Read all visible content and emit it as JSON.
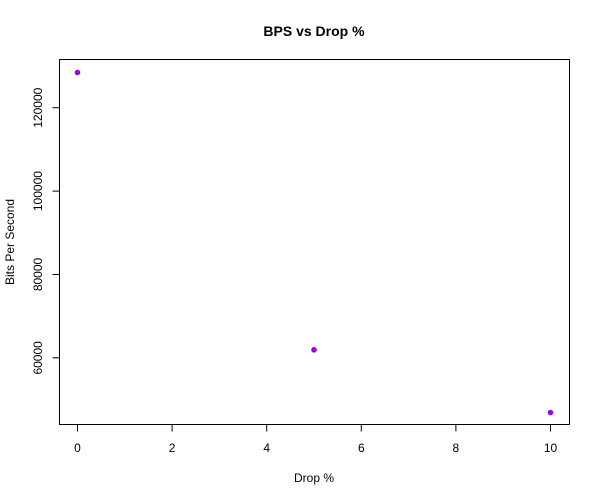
{
  "chart_data": {
    "type": "scatter",
    "title": "BPS vs Drop %",
    "xlabel": "Drop %",
    "ylabel": "Bits Per Second",
    "xlim": [
      0,
      10
    ],
    "ylim": [
      46890,
      128450
    ],
    "xticks": [
      0,
      2,
      4,
      6,
      8,
      10
    ],
    "yticks": [
      60000,
      80000,
      100000,
      120000
    ],
    "point_color": "#9900ee",
    "grid": false,
    "legend": "none",
    "series": [
      {
        "x": [
          0,
          5,
          10
        ],
        "y": [
          128450,
          61920,
          46890
        ]
      }
    ]
  }
}
